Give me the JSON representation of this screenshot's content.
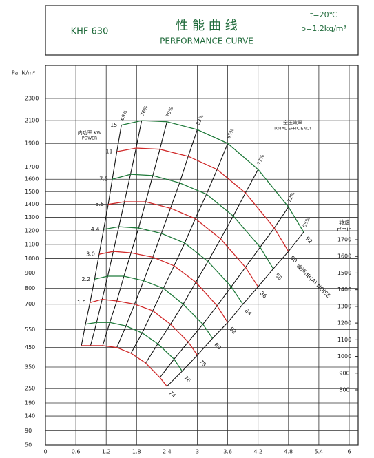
{
  "chart_data": {
    "type": "line",
    "model": "KHF 630",
    "title": "性 能 曲 线",
    "subtitle": "PERFORMANCE CURVE",
    "conditions": [
      "t=20℃",
      "ρ=1.2kg/m³"
    ],
    "y_label": "Pa. N/m²",
    "y2_label": [
      "转速",
      "r/min"
    ],
    "power_label": [
      "内功率 KW",
      "POWER"
    ],
    "efficiency_label": [
      "全压效率",
      "TOTAL EFFICIENCY"
    ],
    "noise_label": "噪声dB(A) NOISE",
    "xlim": [
      0,
      6
    ],
    "xticks": [
      0,
      0.6,
      1.2,
      1.8,
      2.4,
      3,
      3.6,
      4.2,
      4.8,
      5.4,
      6
    ],
    "ylim": [
      50,
      2300
    ],
    "yticks": [
      50,
      90,
      140,
      190,
      250,
      350,
      450,
      550,
      700,
      800,
      900,
      1000,
      1100,
      1200,
      1300,
      1400,
      1500,
      1600,
      1700,
      1900,
      2100,
      2300
    ],
    "y2lim": [
      800,
      1700
    ],
    "y2ticks": [
      800,
      900,
      1000,
      1100,
      1200,
      1300,
      1400,
      1500,
      1600,
      1700
    ],
    "grid": true,
    "efficiency": [
      {
        "value": 69,
        "label": "69%"
      },
      {
        "value": 76,
        "label": "76%"
      },
      {
        "value": 79,
        "label": "79%"
      },
      {
        "value": 83,
        "label": "83%"
      },
      {
        "value": 85,
        "label": "85%"
      },
      {
        "value": 77,
        "label": "77%"
      },
      {
        "value": 72,
        "label": "72%"
      },
      {
        "value": 65,
        "label": "65%"
      }
    ],
    "series": [
      {
        "color": "#1f7a3a",
        "noise": 92,
        "power": 15,
        "x": [
          1.5,
          1.9,
          2.4,
          3.0,
          3.6,
          4.2,
          4.8,
          5.1
        ],
        "values": [
          2060,
          2100,
          2090,
          2020,
          1900,
          1680,
          1380,
          1190
        ]
      },
      {
        "color": "#d02a2a",
        "noise": 90,
        "power": 11,
        "x": [
          1.41,
          1.79,
          2.26,
          2.82,
          3.39,
          3.95,
          4.52,
          4.8
        ],
        "values": [
          1830,
          1860,
          1850,
          1790,
          1680,
          1490,
          1220,
          1050
        ]
      },
      {
        "color": "#1f7a3a",
        "noise": 88,
        "power": 7.5,
        "x": [
          1.32,
          1.68,
          2.12,
          2.65,
          3.18,
          3.71,
          4.24,
          4.5
        ],
        "values": [
          1600,
          1640,
          1630,
          1570,
          1480,
          1310,
          1080,
          930
        ]
      },
      {
        "color": "#d02a2a",
        "noise": 86,
        "power": 5.5,
        "x": [
          1.24,
          1.56,
          1.98,
          2.47,
          2.96,
          3.46,
          3.95,
          4.2
        ],
        "values": [
          1400,
          1420,
          1420,
          1370,
          1290,
          1140,
          940,
          810
        ]
      },
      {
        "color": "#1f7a3a",
        "noise": 84,
        "power": 4.4,
        "x": [
          1.15,
          1.45,
          1.84,
          2.29,
          2.75,
          3.21,
          3.67,
          3.9
        ],
        "values": [
          1210,
          1230,
          1220,
          1180,
          1110,
          980,
          810,
          700
        ]
      },
      {
        "color": "#d02a2a",
        "noise": 82,
        "power": 3,
        "power_label": "3.0",
        "x": [
          1.06,
          1.34,
          1.69,
          2.12,
          2.54,
          2.97,
          3.39,
          3.6
        ],
        "values": [
          1030,
          1050,
          1040,
          1010,
          950,
          840,
          690,
          590
        ]
      },
      {
        "color": "#1f7a3a",
        "noise": 80,
        "power": 2.2,
        "x": [
          0.97,
          1.23,
          1.55,
          1.94,
          2.33,
          2.72,
          3.11,
          3.3
        ],
        "values": [
          860,
          880,
          880,
          850,
          800,
          700,
          580,
          500
        ]
      },
      {
        "color": "#d02a2a",
        "noise": 78,
        "power": 1.5,
        "x": [
          0.88,
          1.12,
          1.41,
          1.76,
          2.12,
          2.47,
          2.82,
          3.0
        ],
        "values": [
          710,
          730,
          720,
          700,
          660,
          580,
          480,
          410
        ]
      },
      {
        "color": "#1f7a3a",
        "noise": 76,
        "x": [
          0.79,
          1.01,
          1.27,
          1.59,
          1.91,
          2.22,
          2.54,
          2.7
        ],
        "values": [
          580,
          590,
          590,
          570,
          530,
          470,
          390,
          330
        ]
      },
      {
        "color": "#d02a2a",
        "noise": 74,
        "x": [
          0.71,
          0.89,
          1.13,
          1.41,
          1.69,
          1.98,
          2.26,
          2.4
        ],
        "values": [
          460,
          460,
          460,
          450,
          420,
          370,
          300,
          260
        ]
      }
    ]
  }
}
